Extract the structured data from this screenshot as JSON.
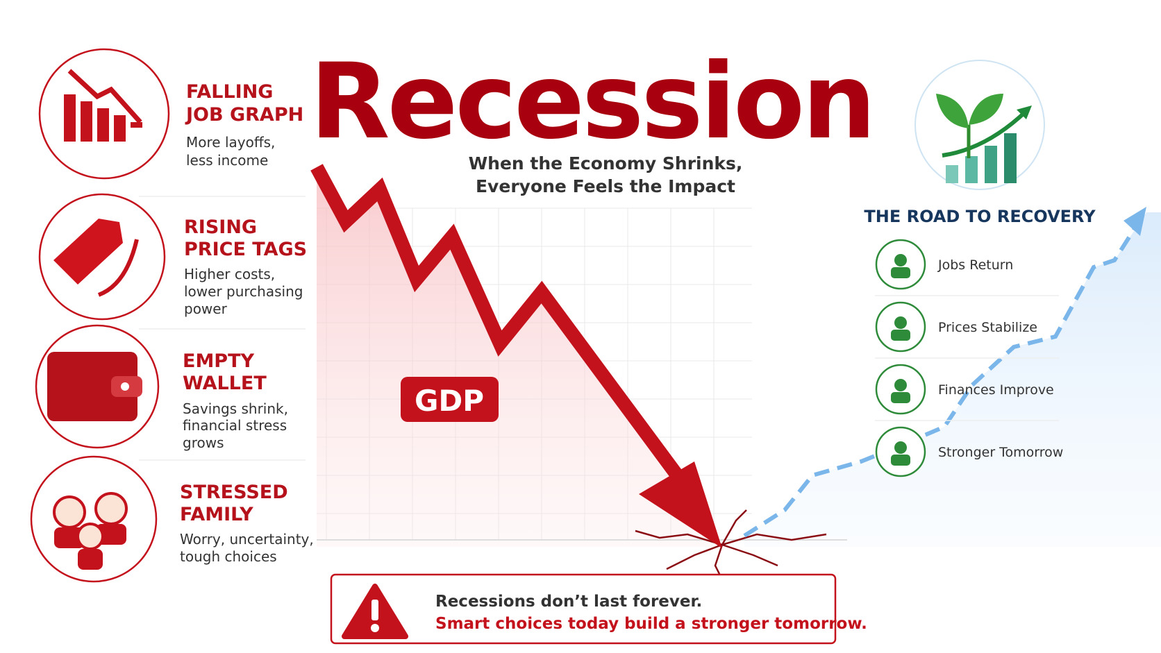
{
  "title": "Recession",
  "subtitle": [
    "When the Economy Shrinks,",
    "Everyone Feels the Impact"
  ],
  "left_items": [
    {
      "heading": [
        "FALLING",
        "JOB GRAPH"
      ],
      "description": [
        "More layoffs,",
        "less income"
      ]
    },
    {
      "heading": [
        "RISING",
        "PRICE TAGS"
      ],
      "description": [
        "Higher costs,",
        "lower purchasing",
        "power"
      ]
    },
    {
      "heading": [
        "EMPTY",
        "WALLET"
      ],
      "description": [
        "Savings shrink,",
        "financial stress",
        "grows"
      ]
    },
    {
      "heading": [
        "STRESSED",
        "FAMILY"
      ],
      "description": [
        "Worry, uncertainty,",
        "tough choices"
      ]
    }
  ],
  "chart_label": "GDP",
  "recovery": {
    "heading": "THE ROAD TO RECOVERY",
    "items": [
      "Jobs Return",
      "Prices Stabilize",
      "Finances Improve",
      "Stronger Tomorrow"
    ]
  },
  "warning": [
    "Recessions don’t last forever.",
    "Smart choices today build a stronger tomorrow."
  ]
}
